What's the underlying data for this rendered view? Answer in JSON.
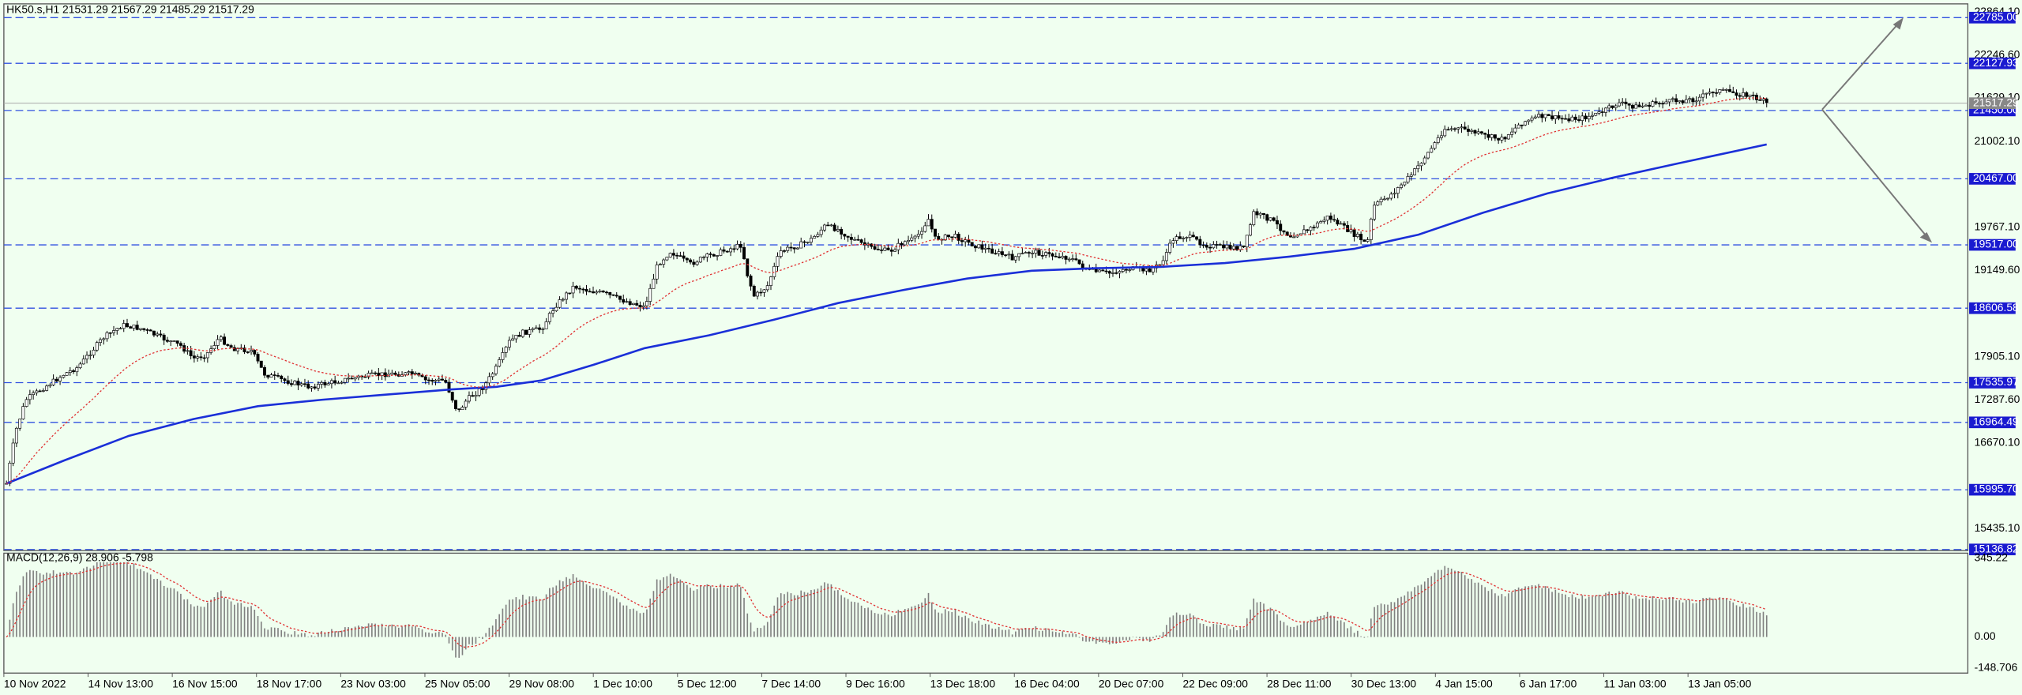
{
  "header": {
    "symbol_info": "HK50.s,H1  21531.29 21567.29 21485.29 21517.29"
  },
  "price_axis": {
    "labels": [
      "22864.10",
      "22246.60",
      "21629.10",
      "21002.10",
      "19767.10",
      "19149.60",
      "17905.10",
      "17287.60",
      "16670.10",
      "15435.10"
    ]
  },
  "levels": [
    "22785.00",
    "22127.93",
    "21450.00",
    "20467.00",
    "19517.00",
    "18606.58",
    "17535.97",
    "16964.49",
    "15995.70",
    "15136.82"
  ],
  "current_price": "21517.29",
  "macd": {
    "label": "MACD(12,26,9) 28.906 -5.798",
    "axis_labels": [
      "345.22",
      "0.00",
      "-148.706"
    ]
  },
  "time_axis": {
    "labels": [
      "10 Nov 2022",
      "14 Nov 13:00",
      "16 Nov 15:00",
      "18 Nov 17:00",
      "23 Nov 03:00",
      "25 Nov 05:00",
      "29 Nov 08:00",
      "1 Dec 10:00",
      "5 Dec 12:00",
      "7 Dec 14:00",
      "9 Dec 16:00",
      "13 Dec 18:00",
      "16 Dec 04:00",
      "20 Dec 07:00",
      "22 Dec 09:00",
      "28 Dec 11:00",
      "30 Dec 13:00",
      "4 Jan 15:00",
      "6 Jan 17:00",
      "11 Jan 03:00",
      "13 Jan 05:00"
    ]
  }
}
